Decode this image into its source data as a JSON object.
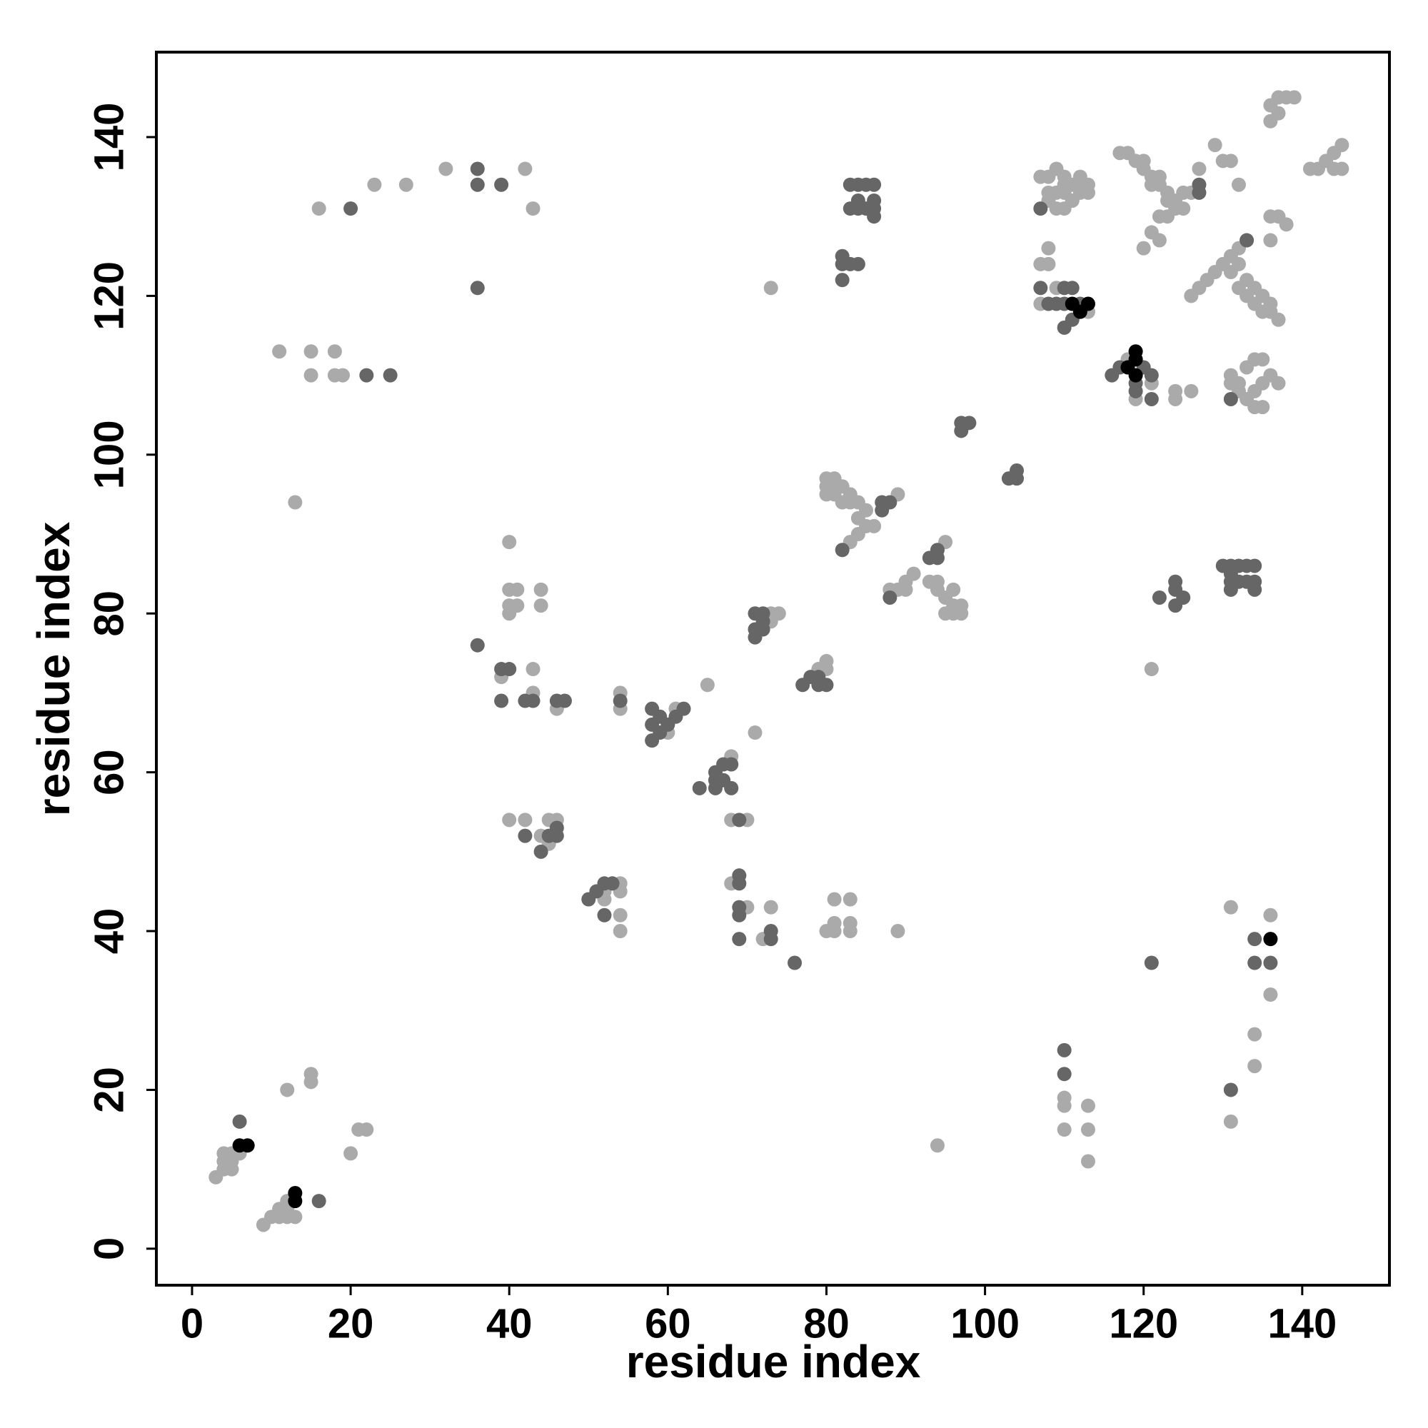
{
  "chart_data": {
    "type": "scatter",
    "xlabel": "residue index",
    "ylabel": "residue index",
    "xlim": [
      -4.5,
      151
    ],
    "ylim": [
      -4.6,
      150.7
    ],
    "xticks": [
      0,
      20,
      40,
      60,
      80,
      100,
      120,
      140
    ],
    "yticks": [
      0,
      20,
      40,
      60,
      80,
      100,
      120,
      140
    ],
    "series": [
      {
        "color": "#aaaaaa",
        "x": [
          3,
          4,
          4,
          4,
          5,
          5,
          6,
          5,
          9,
          10,
          11,
          11,
          12,
          12,
          13,
          12,
          12,
          15,
          15,
          20,
          21,
          22,
          11,
          15,
          18,
          15,
          18,
          19,
          13,
          16,
          23,
          27,
          32,
          42,
          43,
          40,
          40,
          41,
          40,
          41,
          40,
          44,
          44,
          39,
          43,
          43,
          46,
          54,
          54,
          40,
          42,
          45,
          46,
          44,
          45,
          52,
          53,
          54,
          54,
          52,
          54,
          54,
          65,
          61,
          60,
          68,
          66,
          68,
          70,
          68,
          70,
          73,
          72,
          80,
          81,
          81,
          81,
          83,
          83,
          83,
          89,
          71,
          73,
          74,
          73,
          80,
          80,
          79,
          73,
          80,
          81,
          80,
          81,
          82,
          80,
          81,
          83,
          82,
          83,
          84,
          85,
          84,
          85,
          86,
          84,
          83,
          89,
          88,
          89,
          90,
          91,
          90,
          93,
          94,
          94,
          95,
          96,
          95,
          96,
          97,
          97,
          96,
          95,
          94,
          107,
          108,
          109,
          110,
          111,
          112,
          113,
          108,
          109,
          110,
          111,
          112,
          113,
          109,
          110,
          111,
          108,
          110,
          112,
          108,
          107,
          108,
          107,
          109,
          112,
          113,
          117,
          118,
          119,
          120,
          120,
          121,
          122,
          123,
          124,
          125,
          121,
          122,
          123,
          124,
          122,
          123,
          121,
          122,
          120,
          125,
          126,
          127,
          129,
          130,
          131,
          132,
          126,
          127,
          128,
          129,
          130,
          131,
          132,
          133,
          131,
          132,
          133,
          134,
          133,
          134,
          135,
          136,
          137,
          136,
          132,
          135,
          136,
          136,
          137,
          138,
          136,
          136,
          137,
          138,
          139,
          137,
          141,
          142,
          143,
          144,
          145,
          144,
          145,
          131,
          132,
          133,
          134,
          135,
          136,
          137,
          133,
          134,
          135,
          132,
          134,
          135,
          131,
          118,
          119,
          121,
          124,
          124,
          126,
          121,
          131,
          136,
          136,
          134,
          134,
          131,
          110,
          110,
          110,
          113,
          113,
          113
        ],
        "values": [
          9,
          10,
          11,
          12,
          11,
          12,
          12,
          10,
          3,
          4,
          4,
          5,
          4,
          5,
          4,
          6,
          20,
          21,
          22,
          12,
          15,
          15,
          113,
          113,
          113,
          110,
          110,
          110,
          94,
          131,
          134,
          134,
          136,
          136,
          131,
          89,
          83,
          83,
          81,
          81,
          80,
          83,
          81,
          72,
          73,
          70,
          68,
          70,
          68,
          54,
          54,
          54,
          54,
          52,
          51,
          45,
          46,
          46,
          45,
          44,
          42,
          40,
          71,
          68,
          65,
          62,
          59,
          54,
          54,
          46,
          43,
          43,
          39,
          40,
          40,
          41,
          44,
          44,
          41,
          40,
          40,
          65,
          80,
          80,
          79,
          74,
          73,
          73,
          121,
          97,
          97,
          96,
          96,
          96,
          95,
          95,
          95,
          94,
          94,
          94,
          93,
          92,
          91,
          91,
          90,
          89,
          95,
          83,
          83,
          84,
          85,
          83,
          84,
          84,
          83,
          82,
          81,
          80,
          80,
          80,
          81,
          83,
          89,
          13,
          135,
          135,
          136,
          135,
          134,
          135,
          134,
          133,
          133,
          133,
          132,
          133,
          133,
          131,
          131,
          132,
          132,
          134,
          134,
          126,
          124,
          124,
          119,
          121,
          118,
          118,
          138,
          138,
          137,
          137,
          136,
          135,
          134,
          133,
          132,
          131,
          134,
          135,
          132,
          131,
          130,
          130,
          128,
          127,
          126,
          133,
          133,
          136,
          139,
          137,
          137,
          134,
          120,
          121,
          122,
          123,
          124,
          125,
          126,
          127,
          123,
          124,
          122,
          121,
          120,
          119,
          118,
          118,
          117,
          119,
          121,
          120,
          127,
          130,
          130,
          129,
          142,
          144,
          145,
          145,
          145,
          143,
          136,
          136,
          137,
          138,
          139,
          136,
          136,
          110,
          109,
          111,
          112,
          112,
          110,
          109,
          107,
          106,
          106,
          108,
          108,
          109,
          109,
          112,
          107,
          109,
          108,
          107,
          108,
          73,
          43,
          42,
          32,
          27,
          23,
          16,
          19,
          18,
          15,
          18,
          15,
          11
        ]
      },
      {
        "color": "#666666",
        "x": [
          6,
          16,
          20,
          22,
          25,
          36,
          36,
          39,
          36,
          36,
          39,
          40,
          39,
          42,
          43,
          46,
          47,
          54,
          42,
          44,
          45,
          46,
          46,
          50,
          51,
          52,
          53,
          52,
          58,
          58,
          58,
          59,
          60,
          61,
          62,
          59,
          64,
          66,
          66,
          67,
          67,
          68,
          68,
          66,
          69,
          69,
          69,
          69,
          69,
          69,
          73,
          73,
          76,
          71,
          72,
          71,
          72,
          71,
          72,
          77,
          78,
          79,
          80,
          79,
          82,
          82,
          83,
          84,
          82,
          83,
          84,
          85,
          86,
          83,
          84,
          85,
          86,
          84,
          86,
          86,
          87,
          87,
          88,
          82,
          88,
          93,
          94,
          94,
          97,
          98,
          97,
          103,
          104,
          104,
          107,
          107,
          108,
          109,
          110,
          111,
          110,
          111,
          112,
          110,
          116,
          117,
          119,
          119,
          120,
          121,
          121,
          122,
          124,
          124,
          124,
          125,
          130,
          131,
          132,
          133,
          134,
          131,
          131,
          132,
          133,
          134,
          134,
          131,
          127,
          127,
          131,
          133,
          121,
          134,
          134,
          136,
          131,
          110,
          110
        ],
        "values": [
          16,
          6,
          131,
          110,
          110,
          136,
          134,
          134,
          121,
          76,
          73,
          73,
          69,
          69,
          69,
          69,
          69,
          69,
          52,
          50,
          52,
          52,
          53,
          44,
          45,
          46,
          46,
          42,
          68,
          66,
          64,
          67,
          66,
          67,
          68,
          65,
          58,
          58,
          60,
          59,
          61,
          61,
          58,
          59,
          54,
          47,
          46,
          43,
          42,
          39,
          40,
          39,
          36,
          80,
          80,
          78,
          78,
          77,
          79,
          71,
          72,
          71,
          71,
          72,
          124,
          125,
          124,
          124,
          122,
          134,
          134,
          134,
          134,
          131,
          131,
          131,
          131,
          132,
          130,
          132,
          93,
          94,
          94,
          88,
          82,
          87,
          87,
          88,
          104,
          104,
          103,
          97,
          98,
          97,
          131,
          121,
          119,
          119,
          121,
          121,
          116,
          117,
          119,
          119,
          110,
          111,
          108,
          109,
          111,
          110,
          107,
          82,
          84,
          83,
          81,
          82,
          86,
          86,
          86,
          86,
          86,
          84,
          83,
          84,
          84,
          84,
          83,
          85,
          134,
          133,
          107,
          127,
          36,
          39,
          36,
          36,
          20,
          25,
          22
        ]
      },
      {
        "color": "#000000",
        "x": [
          6,
          7,
          13,
          13,
          111,
          112,
          113,
          119,
          118,
          119,
          119,
          136
        ],
        "values": [
          13,
          13,
          7,
          6,
          119,
          118,
          119,
          113,
          111,
          112,
          110,
          39
        ]
      }
    ]
  }
}
